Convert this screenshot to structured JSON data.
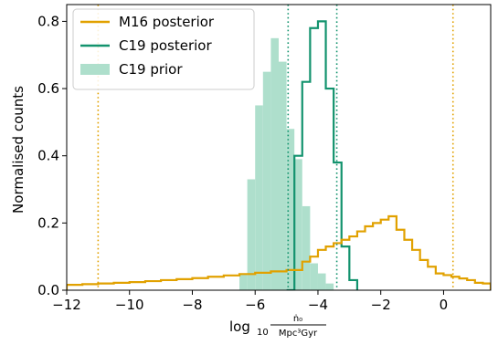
{
  "chart_data": {
    "type": "histogram",
    "xlim": [
      -12,
      1.5
    ],
    "ylim": [
      0,
      0.85
    ],
    "ylabel": "Normalised counts",
    "xlabel": {
      "prefix": "log",
      "subscript": "10",
      "numerator": "ṅ₀",
      "denominator": "Mpc³Gyr"
    },
    "x_ticks": [
      -12,
      -10,
      -8,
      -6,
      -4,
      -2,
      0
    ],
    "x_tick_labels": [
      "−12",
      "−10",
      "−8",
      "−6",
      "−4",
      "−2",
      "0"
    ],
    "y_ticks": [
      0.0,
      0.2,
      0.4,
      0.6,
      0.8
    ],
    "y_tick_labels": [
      "0.0",
      "0.2",
      "0.4",
      "0.6",
      "0.8"
    ],
    "legend": {
      "placement": "top-left",
      "entries": [
        {
          "label": "M16 posterior",
          "color": "#E1A100",
          "style": "line"
        },
        {
          "label": "C19 posterior",
          "color": "#13936E",
          "style": "line"
        },
        {
          "label": "C19 prior",
          "color": "#AEDFCC",
          "style": "patch"
        }
      ]
    },
    "series": [
      {
        "name": "C19 prior",
        "kind": "filled-step",
        "color": "#AEDFCC",
        "edges": [
          -6.5,
          -6.25,
          -6.0,
          -5.75,
          -5.5,
          -5.25,
          -5.0,
          -4.75,
          -4.5,
          -4.25,
          -4.0,
          -3.75,
          -3.5
        ],
        "values": [
          0.05,
          0.33,
          0.55,
          0.65,
          0.75,
          0.68,
          0.48,
          0.39,
          0.25,
          0.08,
          0.05,
          0.02
        ]
      },
      {
        "name": "C19 posterior",
        "kind": "step",
        "color": "#13936E",
        "edges": [
          -5.0,
          -4.75,
          -4.5,
          -4.25,
          -4.0,
          -3.75,
          -3.5,
          -3.25,
          -3.0,
          -2.75
        ],
        "values": [
          0.0,
          0.4,
          0.62,
          0.78,
          0.8,
          0.6,
          0.38,
          0.13,
          0.03
        ]
      },
      {
        "name": "M16 posterior",
        "kind": "step",
        "color": "#E1A100",
        "edges": [
          -12.0,
          -11.5,
          -11.0,
          -10.5,
          -10.0,
          -9.5,
          -9.0,
          -8.5,
          -8.0,
          -7.5,
          -7.0,
          -6.5,
          -6.0,
          -5.5,
          -5.0,
          -4.5,
          -4.25,
          -4.0,
          -3.75,
          -3.5,
          -3.25,
          -3.0,
          -2.75,
          -2.5,
          -2.25,
          -2.0,
          -1.75,
          -1.5,
          -1.25,
          -1.0,
          -0.75,
          -0.5,
          -0.25,
          0.0,
          0.25,
          0.5,
          0.75,
          1.0,
          1.25,
          1.5
        ],
        "values": [
          0.016,
          0.018,
          0.02,
          0.022,
          0.024,
          0.027,
          0.03,
          0.033,
          0.036,
          0.04,
          0.044,
          0.048,
          0.052,
          0.056,
          0.06,
          0.085,
          0.1,
          0.12,
          0.13,
          0.14,
          0.15,
          0.16,
          0.175,
          0.19,
          0.2,
          0.21,
          0.22,
          0.18,
          0.15,
          0.12,
          0.09,
          0.07,
          0.05,
          0.045,
          0.04,
          0.035,
          0.03,
          0.022,
          0.02
        ]
      }
    ],
    "vlines": [
      {
        "x": -11.0,
        "color": "#E1A100",
        "style": "dotted"
      },
      {
        "x": 0.3,
        "color": "#E1A100",
        "style": "dotted"
      },
      {
        "x": -4.95,
        "color": "#13936E",
        "style": "dotted"
      },
      {
        "x": -3.4,
        "color": "#13936E",
        "style": "dotted"
      }
    ]
  }
}
